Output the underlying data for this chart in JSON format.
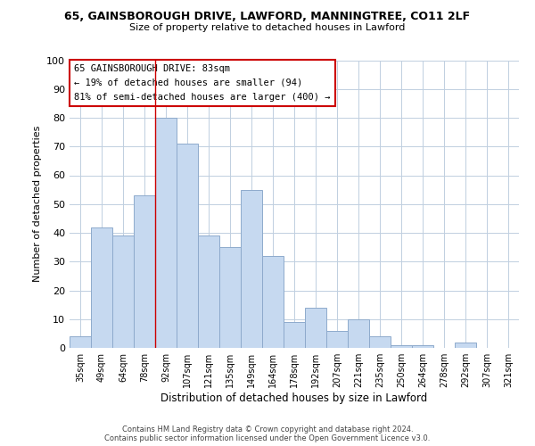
{
  "title_line1": "65, GAINSBOROUGH DRIVE, LAWFORD, MANNINGTREE, CO11 2LF",
  "title_line2": "Size of property relative to detached houses in Lawford",
  "xlabel": "Distribution of detached houses by size in Lawford",
  "ylabel": "Number of detached properties",
  "bar_labels": [
    "35sqm",
    "49sqm",
    "64sqm",
    "78sqm",
    "92sqm",
    "107sqm",
    "121sqm",
    "135sqm",
    "149sqm",
    "164sqm",
    "178sqm",
    "192sqm",
    "207sqm",
    "221sqm",
    "235sqm",
    "250sqm",
    "264sqm",
    "278sqm",
    "292sqm",
    "307sqm",
    "321sqm"
  ],
  "bar_values": [
    4,
    42,
    39,
    53,
    80,
    71,
    39,
    35,
    55,
    32,
    9,
    14,
    6,
    10,
    4,
    1,
    1,
    0,
    2,
    0,
    0
  ],
  "bar_color": "#c6d9f0",
  "bar_edge_color": "#8eaacc",
  "vline_color": "#cc0000",
  "ylim": [
    0,
    100
  ],
  "yticks": [
    0,
    10,
    20,
    30,
    40,
    50,
    60,
    70,
    80,
    90,
    100
  ],
  "annotation_title": "65 GAINSBOROUGH DRIVE: 83sqm",
  "annotation_line1": "← 19% of detached houses are smaller (94)",
  "annotation_line2": "81% of semi-detached houses are larger (400) →",
  "annotation_box_color": "#ffffff",
  "annotation_box_edge_color": "#cc0000",
  "footer_line1": "Contains HM Land Registry data © Crown copyright and database right 2024.",
  "footer_line2": "Contains public sector information licensed under the Open Government Licence v3.0.",
  "background_color": "#ffffff",
  "grid_color": "#c0cfe0"
}
